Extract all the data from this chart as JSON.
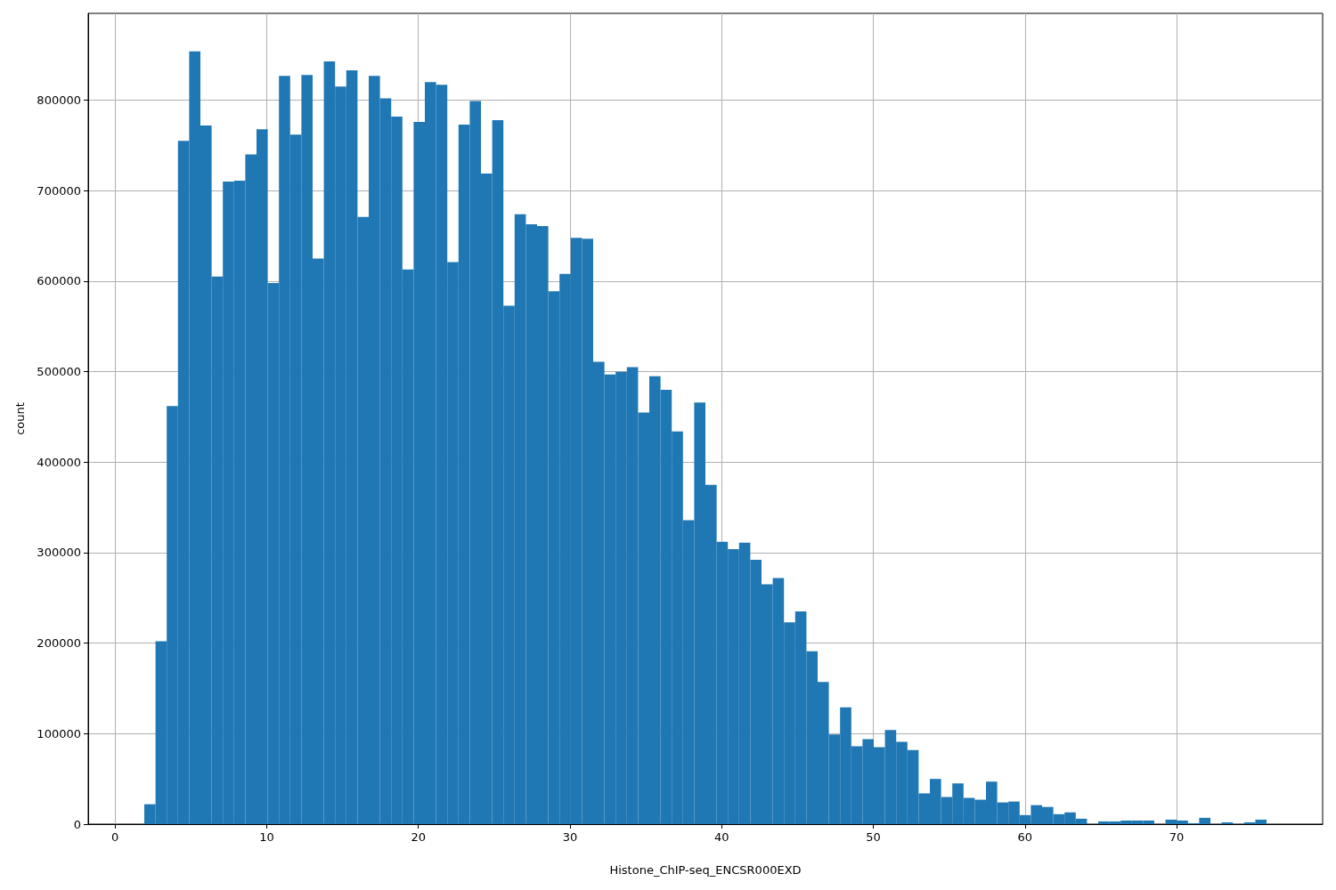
{
  "chart_data": {
    "type": "histogram",
    "xlabel": "Histone_ChIP-seq_ENCSR000EXD",
    "ylabel": "count",
    "color": "#1f77b4",
    "bins": [
      1.93,
      2.67,
      3.41,
      4.15,
      4.89,
      5.63,
      6.37,
      7.11,
      7.85,
      8.59,
      9.33,
      10.07,
      10.81,
      11.55,
      12.29,
      13.03,
      13.77,
      14.51,
      15.25,
      15.99,
      16.73,
      17.47,
      18.21,
      18.95,
      19.69,
      20.43,
      21.17,
      21.91,
      22.65,
      23.39,
      24.13,
      24.87,
      25.61,
      26.35,
      27.09,
      27.83,
      28.57,
      29.31,
      30.05,
      30.79,
      31.53,
      32.27,
      33.01,
      33.75,
      34.49,
      35.23,
      35.97,
      36.71,
      37.45,
      38.19,
      38.93,
      39.67,
      40.41,
      41.15,
      41.89,
      42.63,
      43.37,
      44.11,
      44.85,
      45.59,
      46.33,
      47.07,
      47.81,
      48.55,
      49.29,
      50.03,
      50.77,
      51.51,
      52.25,
      52.99,
      53.73,
      54.47,
      55.21,
      55.95,
      56.69,
      57.43,
      58.17,
      58.91,
      59.65,
      60.39,
      61.13,
      61.87,
      62.61,
      63.35,
      64.09,
      64.83,
      65.57,
      66.31,
      67.05,
      67.79,
      68.53,
      69.27,
      70.01,
      70.75,
      71.49,
      72.23,
      72.97,
      73.71,
      74.45,
      75.19,
      75.93
    ],
    "values": [
      22000,
      202000,
      462000,
      755000,
      854000,
      772000,
      605000,
      710000,
      711000,
      740000,
      768000,
      598000,
      827000,
      762000,
      828000,
      625000,
      843000,
      815000,
      833000,
      671000,
      827000,
      802000,
      782000,
      613000,
      776000,
      820000,
      817000,
      621000,
      773000,
      799000,
      719000,
      778000,
      573000,
      674000,
      663000,
      661000,
      589000,
      608000,
      648000,
      647000,
      511000,
      497000,
      500000,
      505000,
      455000,
      495000,
      480000,
      434000,
      336000,
      466000,
      375000,
      312000,
      304000,
      311000,
      292000,
      265000,
      272000,
      223000,
      235000,
      191000,
      157000,
      99000,
      129000,
      86000,
      94000,
      85000,
      104000,
      91000,
      82000,
      34000,
      50000,
      30000,
      45000,
      29000,
      27000,
      47000,
      24000,
      25000,
      10000,
      21000,
      19000,
      11000,
      13000,
      6000,
      0,
      3000,
      3000,
      4000,
      4000,
      4000,
      0,
      5000,
      4000,
      1000,
      7000,
      0,
      2000,
      0,
      2000,
      5000
    ],
    "xlim": [
      -1.77,
      79.63
    ],
    "xticks": [
      0,
      10,
      20,
      30,
      40,
      50,
      60,
      70
    ],
    "ylim": [
      0,
      896000
    ],
    "yticks": [
      0,
      100000,
      200000,
      300000,
      400000,
      500000,
      600000,
      700000,
      800000
    ],
    "grid": true
  }
}
